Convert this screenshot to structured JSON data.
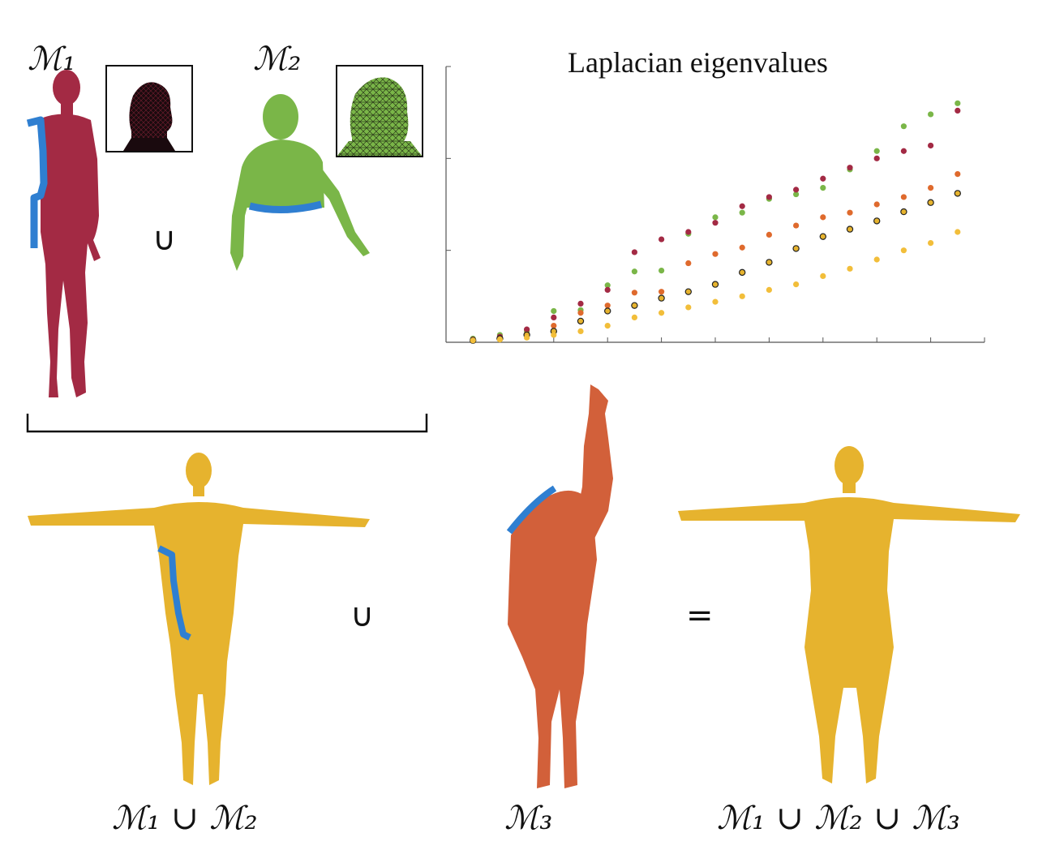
{
  "labels": {
    "m1": "ℳ₁",
    "m2": "ℳ₂",
    "union_top": "∪",
    "union_bottom": "∪",
    "equals": "=",
    "m1_union_m2": "ℳ₁ ∪ ℳ₂",
    "m3": "ℳ₃",
    "m1_union_m2_union_m3": "ℳ₁ ∪ ℳ₂ ∪ ℳ₃"
  },
  "colors": {
    "m1": "#a32a44",
    "m2": "#7ab648",
    "m3": "#d2603a",
    "union": "#e6b32e",
    "boundary": "#2f7fd1",
    "eig_union12": "#df6a2d"
  },
  "chart_data": {
    "type": "scatter",
    "title": "Laplacian eigenvalues",
    "xlabel": "",
    "ylabel": "",
    "xlim": [
      0,
      20
    ],
    "ylim": [
      0,
      3
    ],
    "grid": false,
    "series": [
      {
        "color": "#7ab648",
        "marker": "filled",
        "x": [
          1,
          2,
          3,
          4,
          5,
          6,
          7,
          8,
          9,
          10,
          11,
          12,
          13,
          14,
          15,
          16,
          17,
          18,
          19
        ],
        "y": [
          0.04,
          0.08,
          0.12,
          0.34,
          0.35,
          0.62,
          0.77,
          0.78,
          1.18,
          1.36,
          1.41,
          1.56,
          1.61,
          1.68,
          1.88,
          2.08,
          2.35,
          2.48,
          2.6
        ]
      },
      {
        "color": "#a32a44",
        "marker": "filled",
        "x": [
          1,
          2,
          3,
          4,
          5,
          6,
          7,
          8,
          9,
          10,
          11,
          12,
          13,
          14,
          15,
          16,
          17,
          18,
          19
        ],
        "y": [
          0.03,
          0.06,
          0.14,
          0.27,
          0.42,
          0.57,
          0.98,
          1.12,
          1.2,
          1.3,
          1.48,
          1.58,
          1.66,
          1.78,
          1.9,
          2.0,
          2.08,
          2.14,
          2.52
        ]
      },
      {
        "color": "#df6a2d",
        "marker": "filled",
        "x": [
          1,
          2,
          3,
          4,
          5,
          6,
          7,
          8,
          9,
          10,
          11,
          12,
          13,
          14,
          15,
          16,
          17,
          18,
          19
        ],
        "y": [
          0.02,
          0.04,
          0.09,
          0.18,
          0.32,
          0.4,
          0.54,
          0.55,
          0.86,
          0.96,
          1.03,
          1.17,
          1.27,
          1.36,
          1.41,
          1.5,
          1.58,
          1.68,
          1.83
        ]
      },
      {
        "color": "#e6b32e",
        "marker": "outlined",
        "x": [
          1,
          2,
          3,
          4,
          5,
          6,
          7,
          8,
          9,
          10,
          11,
          12,
          13,
          14,
          15,
          16,
          17,
          18,
          19
        ],
        "y": [
          0.02,
          0.04,
          0.08,
          0.12,
          0.23,
          0.34,
          0.4,
          0.48,
          0.55,
          0.63,
          0.76,
          0.87,
          1.02,
          1.15,
          1.23,
          1.32,
          1.42,
          1.52,
          1.62
        ]
      },
      {
        "color": "#f2be3a",
        "marker": "filled",
        "x": [
          1,
          2,
          3,
          4,
          5,
          6,
          7,
          8,
          9,
          10,
          11,
          12,
          13,
          14,
          15,
          16,
          17,
          18,
          19
        ],
        "y": [
          0.02,
          0.03,
          0.05,
          0.08,
          0.12,
          0.18,
          0.27,
          0.32,
          0.38,
          0.44,
          0.5,
          0.57,
          0.63,
          0.72,
          0.8,
          0.9,
          1.0,
          1.08,
          1.2
        ]
      }
    ]
  }
}
